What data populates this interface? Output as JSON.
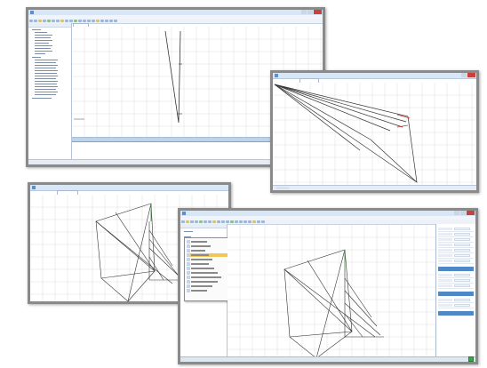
{
  "colors": {
    "frame_border": "#8a8a8a",
    "title_bar": "#d9e6f5",
    "grid_line": "#d7d7d7",
    "plot_line": "#333333",
    "highlight_line": "#cc3333",
    "menu_highlight": "#f3c656",
    "info_panel": "#bcd3ec",
    "tray_icon": "#3fa34d"
  },
  "screenshots": [
    {
      "id": "main-view",
      "has_tree": true,
      "has_info_panel": true
    },
    {
      "id": "radial-view",
      "has_tree": false
    },
    {
      "id": "network-view",
      "has_tree": false
    },
    {
      "id": "context-menu-view",
      "has_tree": true,
      "has_context_menu": true,
      "has_property_grid": true
    }
  ],
  "icons": {
    "app": "app-icon",
    "close": "close-icon",
    "tray": "tray-app-icon"
  }
}
